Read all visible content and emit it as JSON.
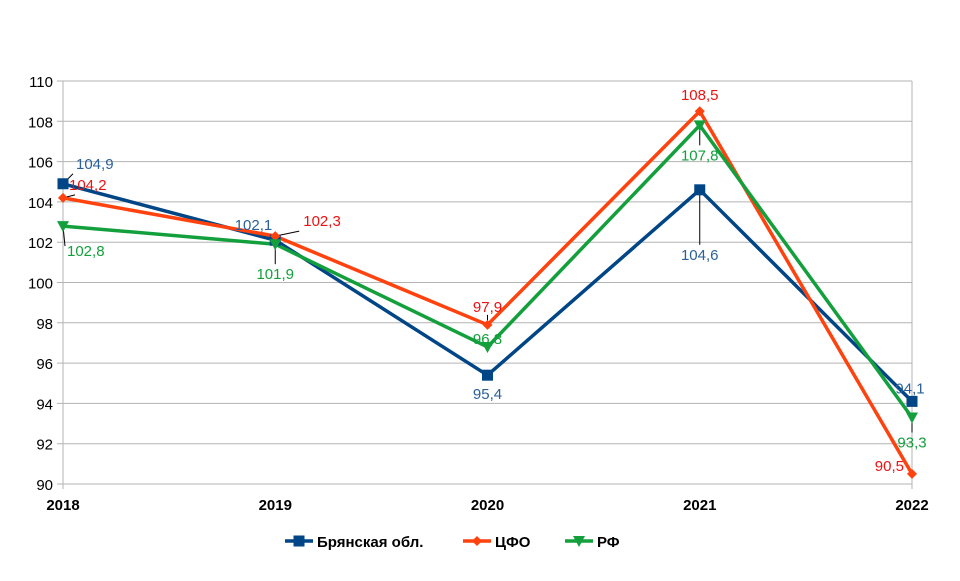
{
  "chart_data": {
    "type": "line",
    "title": "",
    "xlabel": "",
    "ylabel": "",
    "categories": [
      "2018",
      "2019",
      "2020",
      "2021",
      "2022"
    ],
    "ylim": [
      90,
      110
    ],
    "yticks": [
      "90",
      "92",
      "94",
      "96",
      "98",
      "100",
      "102",
      "104",
      "106",
      "108",
      "110"
    ],
    "grid": true,
    "legend_position": "bottom",
    "series": [
      {
        "name": "Брянская обл.",
        "color": "#004586",
        "marker": "square",
        "values": [
          104.9,
          102.1,
          95.4,
          104.6,
          94.1
        ],
        "labels": [
          "104,9",
          "102,1",
          "95,4",
          "104,6",
          "94,1"
        ],
        "label_color": "#2a6099"
      },
      {
        "name": "ЦФО",
        "color": "#ff420e",
        "marker": "diamond",
        "values": [
          104.2,
          102.3,
          97.9,
          108.5,
          90.5
        ],
        "labels": [
          "104,2",
          "102,3",
          "97,9",
          "108,5",
          "90,5"
        ],
        "label_color": "#ee1111"
      },
      {
        "name": "РФ",
        "color": "#13a03c",
        "marker": "triangle-down",
        "values": [
          102.8,
          101.9,
          96.8,
          107.8,
          93.3
        ],
        "labels": [
          "102,8",
          "101,9",
          "96,8",
          "107,8",
          "93,3"
        ],
        "label_color": "#13a03c"
      }
    ]
  }
}
